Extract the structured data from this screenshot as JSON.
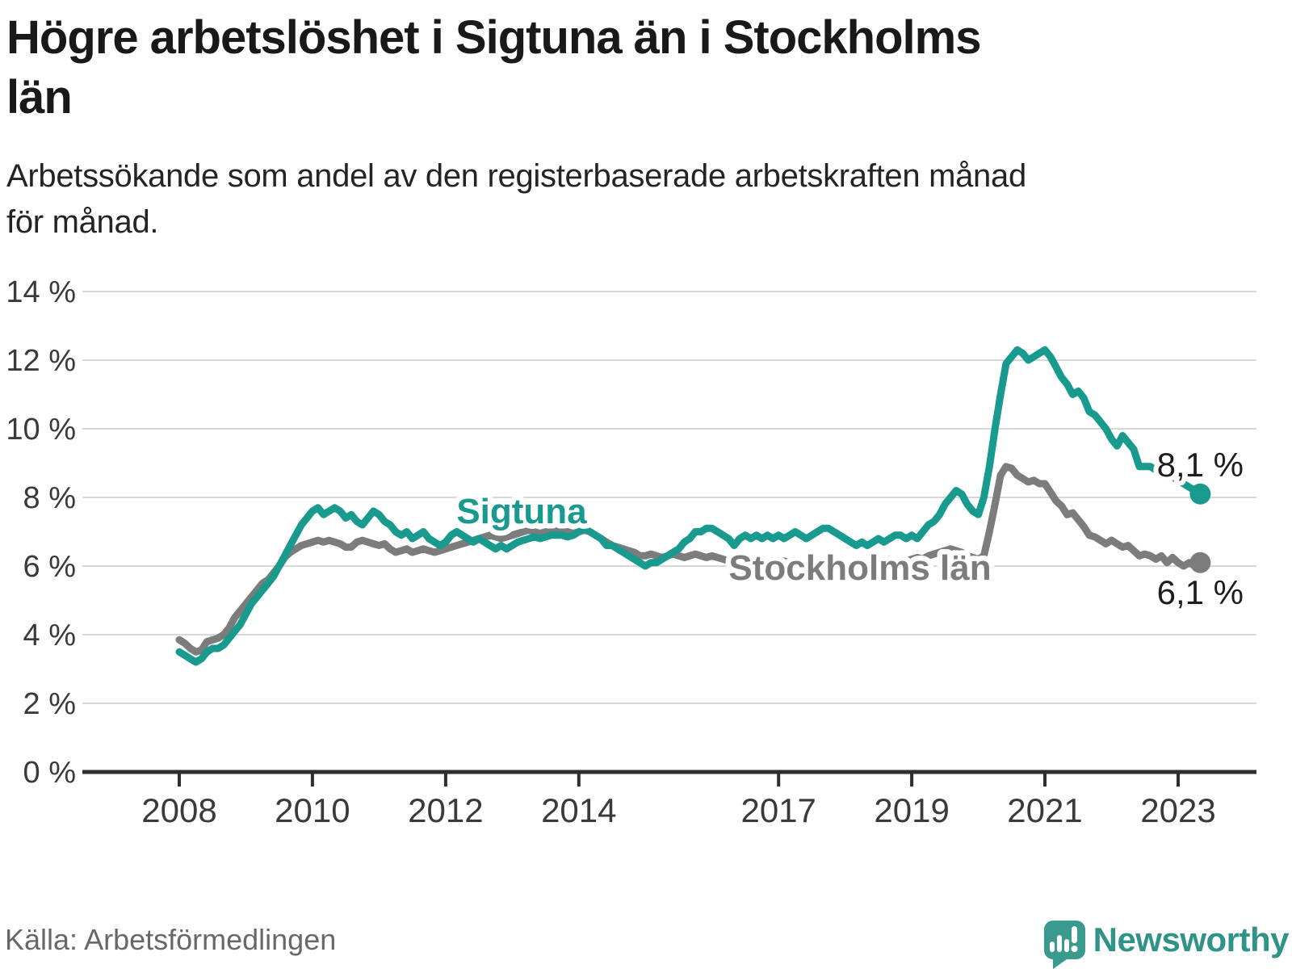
{
  "title_lines": [
    "Högre arbetslöshet i Sigtuna än i Stockholms",
    "län"
  ],
  "subtitle_lines": [
    "Arbetssökande som andel av den registerbaserade arbetskraften månad",
    "för månad."
  ],
  "source": "Källa: Arbetsförmedlingen",
  "branding": {
    "name": "Newsworthy",
    "logo_color": "#2f9388",
    "icon": "speech-bubble-bar-chart"
  },
  "colors": {
    "sigtuna": "#189a8e",
    "stockholm": "#7c7c7c",
    "grid": "#d8d8d8",
    "axis": "#2e2e2e",
    "title_text": "#191919",
    "axis_text": "#3a3a3a",
    "source_text": "#686868"
  },
  "chart_data": {
    "type": "line",
    "title": "Högre arbetslöshet i Sigtuna än i Stockholms län",
    "subtitle": "Arbetssökande som andel av den registerbaserade arbetskraften månad för månad.",
    "unit": "%",
    "frequency": "monthly",
    "x_start": "2008-01",
    "x_end": "2023-05",
    "ylim": [
      0,
      14
    ],
    "grid": true,
    "y_ticks": [
      "14 %",
      "12 %",
      "10 %",
      "8 %",
      "6 %",
      "4 %",
      "2 %",
      "0 %"
    ],
    "x_ticks": [
      2008,
      2010,
      2012,
      2014,
      2017,
      2019,
      2021,
      2023
    ],
    "series": [
      {
        "name": "Sigtuna",
        "color": "#189a8e",
        "end_label": "8,1 %",
        "end_value": 8.1,
        "values": [
          3.5,
          3.4,
          3.3,
          3.2,
          3.3,
          3.5,
          3.6,
          3.6,
          3.7,
          3.9,
          4.1,
          4.3,
          4.6,
          4.9,
          5.1,
          5.3,
          5.5,
          5.7,
          6.0,
          6.3,
          6.6,
          6.9,
          7.2,
          7.4,
          7.6,
          7.7,
          7.5,
          7.6,
          7.7,
          7.6,
          7.4,
          7.5,
          7.3,
          7.2,
          7.4,
          7.6,
          7.5,
          7.3,
          7.2,
          7.0,
          6.9,
          7.0,
          6.8,
          6.9,
          7.0,
          6.8,
          6.7,
          6.6,
          6.7,
          6.9,
          7.0,
          6.9,
          6.8,
          6.7,
          6.8,
          6.7,
          6.6,
          6.5,
          6.6,
          6.5,
          6.6,
          6.7,
          6.75,
          6.8,
          6.85,
          6.8,
          6.85,
          6.9,
          6.9,
          6.9,
          6.85,
          6.9,
          7.0,
          7.1,
          7.0,
          6.9,
          6.8,
          6.6,
          6.6,
          6.5,
          6.4,
          6.3,
          6.2,
          6.1,
          6.0,
          6.1,
          6.1,
          6.2,
          6.3,
          6.4,
          6.5,
          6.7,
          6.8,
          7.0,
          7.0,
          7.1,
          7.1,
          7.0,
          6.9,
          6.8,
          6.6,
          6.8,
          6.9,
          6.8,
          6.9,
          6.8,
          6.9,
          6.8,
          6.9,
          6.8,
          6.9,
          7.0,
          6.9,
          6.8,
          6.9,
          7.0,
          7.1,
          7.1,
          7.0,
          6.9,
          6.8,
          6.7,
          6.6,
          6.7,
          6.6,
          6.7,
          6.8,
          6.7,
          6.8,
          6.9,
          6.9,
          6.8,
          6.9,
          6.8,
          7.0,
          7.2,
          7.3,
          7.5,
          7.8,
          8.0,
          8.2,
          8.1,
          7.8,
          7.6,
          7.5,
          8.0,
          8.9,
          10.0,
          11.0,
          11.9,
          12.1,
          12.3,
          12.2,
          12.0,
          12.1,
          12.2,
          12.3,
          12.1,
          11.8,
          11.5,
          11.3,
          11.0,
          11.1,
          10.9,
          10.5,
          10.4,
          10.2,
          10.0,
          9.7,
          9.5,
          9.8,
          9.6,
          9.4,
          8.9,
          8.9,
          8.9,
          8.8,
          8.8,
          8.7,
          8.6,
          8.5,
          8.4,
          8.3,
          8.2,
          8.1
        ]
      },
      {
        "name": "Stockholms län",
        "color": "#7c7c7c",
        "end_label": "6,1 %",
        "end_value": 6.1,
        "values": [
          3.85,
          3.75,
          3.6,
          3.5,
          3.55,
          3.8,
          3.85,
          3.9,
          4.0,
          4.2,
          4.5,
          4.7,
          4.9,
          5.1,
          5.3,
          5.5,
          5.6,
          5.8,
          6.0,
          6.25,
          6.4,
          6.5,
          6.6,
          6.65,
          6.7,
          6.75,
          6.7,
          6.75,
          6.7,
          6.65,
          6.55,
          6.55,
          6.7,
          6.75,
          6.7,
          6.65,
          6.6,
          6.65,
          6.5,
          6.4,
          6.45,
          6.5,
          6.4,
          6.45,
          6.5,
          6.45,
          6.4,
          6.45,
          6.5,
          6.55,
          6.6,
          6.65,
          6.7,
          6.75,
          6.8,
          6.85,
          6.9,
          6.85,
          6.8,
          6.85,
          6.9,
          6.95,
          7.0,
          7.05,
          7.0,
          6.95,
          7.0,
          7.05,
          7.1,
          7.05,
          7.0,
          6.95,
          7.0,
          7.05,
          7.0,
          6.9,
          6.8,
          6.7,
          6.6,
          6.55,
          6.5,
          6.45,
          6.4,
          6.3,
          6.3,
          6.35,
          6.3,
          6.25,
          6.3,
          6.35,
          6.3,
          6.25,
          6.3,
          6.35,
          6.3,
          6.25,
          6.3,
          6.25,
          6.2,
          6.15,
          6.1,
          6.05,
          6.0,
          6.05,
          6.0,
          6.1,
          6.05,
          6.1,
          6.1,
          6.15,
          6.1,
          6.05,
          6.1,
          6.15,
          6.2,
          6.15,
          6.1,
          6.15,
          6.1,
          6.15,
          6.1,
          6.05,
          6.0,
          6.05,
          6.1,
          6.05,
          6.1,
          6.15,
          6.2,
          6.15,
          6.1,
          6.15,
          6.2,
          6.25,
          6.2,
          6.3,
          6.35,
          6.4,
          6.45,
          6.5,
          6.45,
          6.4,
          6.3,
          6.25,
          6.2,
          6.3,
          7.0,
          7.8,
          8.65,
          8.9,
          8.85,
          8.65,
          8.55,
          8.45,
          8.5,
          8.4,
          8.4,
          8.15,
          7.9,
          7.75,
          7.5,
          7.55,
          7.35,
          7.15,
          6.9,
          6.85,
          6.75,
          6.65,
          6.75,
          6.65,
          6.55,
          6.6,
          6.45,
          6.3,
          6.35,
          6.3,
          6.2,
          6.3,
          6.1,
          6.25,
          6.1,
          6.0,
          6.1,
          6.0,
          6.1
        ]
      }
    ]
  }
}
